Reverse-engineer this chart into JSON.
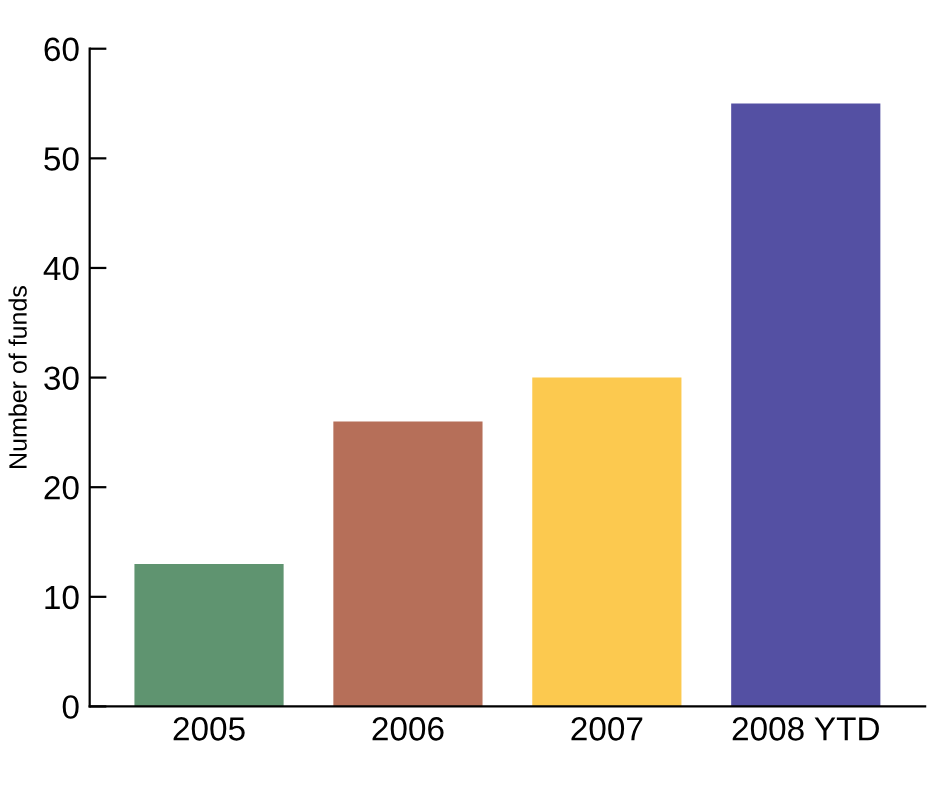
{
  "chart_data": {
    "type": "bar",
    "categories": [
      "2005",
      "2006",
      "2007",
      "2008 YTD"
    ],
    "values": [
      13,
      26,
      30,
      55
    ],
    "colors": [
      "#5f9470",
      "#b66f59",
      "#fcc94f",
      "#5450a3"
    ],
    "ylabel": "Number of funds",
    "ylim": [
      0,
      60
    ],
    "yticks": [
      0,
      10,
      20,
      30,
      40,
      50,
      60
    ],
    "grid": false
  }
}
